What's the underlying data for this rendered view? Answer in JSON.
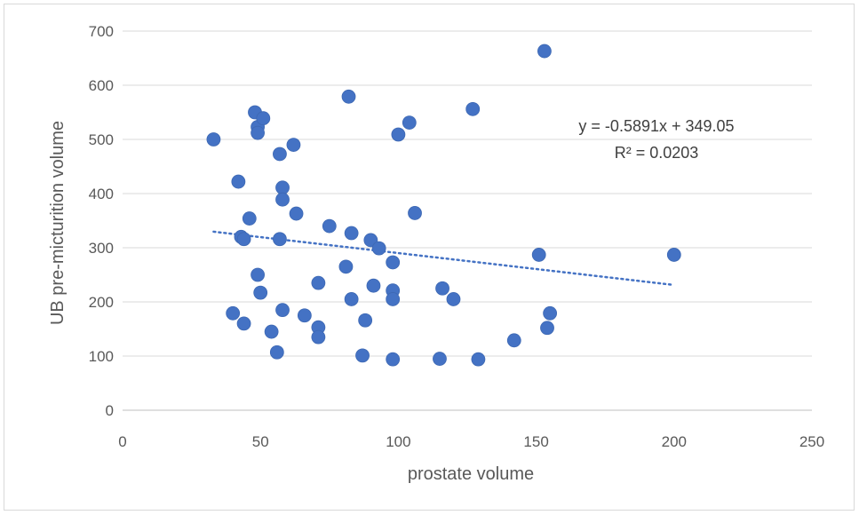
{
  "chart_data": {
    "type": "scatter",
    "xlabel": "prostate volume",
    "ylabel": "UB pre-micturition volume",
    "xlim": [
      0,
      250
    ],
    "ylim": [
      0,
      700
    ],
    "x_ticks": [
      "0",
      "50",
      "100",
      "150",
      "200",
      "250"
    ],
    "y_ticks": [
      "0",
      "100",
      "200",
      "300",
      "400",
      "500",
      "600",
      "700"
    ],
    "grid": "horizontal",
    "legend": "none",
    "marker_color": "#4472C4",
    "trendline": {
      "type": "linear",
      "slope": -0.5891,
      "intercept": 349.05,
      "x_range": [
        33,
        200
      ],
      "style": "dotted",
      "color": "#4472C4"
    },
    "annotations": [
      "y = -0.5891x + 349.05",
      "R² = 0.0203"
    ],
    "points": [
      {
        "x": 33,
        "y": 500
      },
      {
        "x": 40,
        "y": 179
      },
      {
        "x": 42,
        "y": 422
      },
      {
        "x": 43,
        "y": 320
      },
      {
        "x": 44,
        "y": 316
      },
      {
        "x": 44,
        "y": 160
      },
      {
        "x": 46,
        "y": 354
      },
      {
        "x": 48,
        "y": 550
      },
      {
        "x": 49,
        "y": 523
      },
      {
        "x": 49,
        "y": 512
      },
      {
        "x": 49,
        "y": 250
      },
      {
        "x": 50,
        "y": 217
      },
      {
        "x": 51,
        "y": 539
      },
      {
        "x": 54,
        "y": 145
      },
      {
        "x": 56,
        "y": 107
      },
      {
        "x": 57,
        "y": 473
      },
      {
        "x": 57,
        "y": 316
      },
      {
        "x": 58,
        "y": 411
      },
      {
        "x": 58,
        "y": 389
      },
      {
        "x": 58,
        "y": 185
      },
      {
        "x": 62,
        "y": 490
      },
      {
        "x": 63,
        "y": 363
      },
      {
        "x": 66,
        "y": 175
      },
      {
        "x": 71,
        "y": 235
      },
      {
        "x": 71,
        "y": 153
      },
      {
        "x": 71,
        "y": 135
      },
      {
        "x": 75,
        "y": 340
      },
      {
        "x": 81,
        "y": 265
      },
      {
        "x": 82,
        "y": 579
      },
      {
        "x": 83,
        "y": 327
      },
      {
        "x": 83,
        "y": 205
      },
      {
        "x": 87,
        "y": 101
      },
      {
        "x": 88,
        "y": 166
      },
      {
        "x": 90,
        "y": 314
      },
      {
        "x": 91,
        "y": 230
      },
      {
        "x": 93,
        "y": 299
      },
      {
        "x": 98,
        "y": 273
      },
      {
        "x": 98,
        "y": 221
      },
      {
        "x": 98,
        "y": 205
      },
      {
        "x": 98,
        "y": 94
      },
      {
        "x": 100,
        "y": 509
      },
      {
        "x": 104,
        "y": 531
      },
      {
        "x": 106,
        "y": 364
      },
      {
        "x": 115,
        "y": 95
      },
      {
        "x": 116,
        "y": 225
      },
      {
        "x": 120,
        "y": 205
      },
      {
        "x": 127,
        "y": 556
      },
      {
        "x": 129,
        "y": 94
      },
      {
        "x": 142,
        "y": 129
      },
      {
        "x": 151,
        "y": 287
      },
      {
        "x": 153,
        "y": 663
      },
      {
        "x": 154,
        "y": 152
      },
      {
        "x": 155,
        "y": 179
      },
      {
        "x": 200,
        "y": 287
      }
    ]
  }
}
